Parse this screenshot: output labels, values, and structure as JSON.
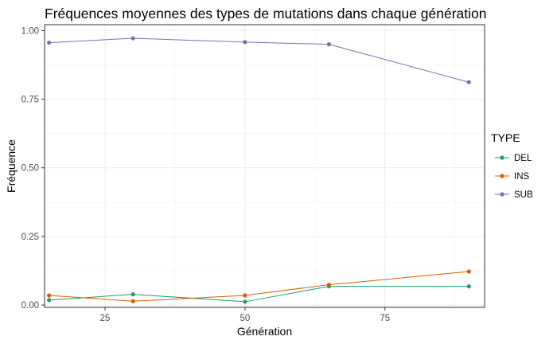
{
  "chart_data": {
    "type": "line",
    "title": "Fréquences moyennes des types de mutations dans chaque génération",
    "xlabel": "Génération",
    "ylabel": "Fréquence",
    "xlim": [
      14.2,
      92.8
    ],
    "ylim": [
      -0.0085,
      1.0215
    ],
    "x_ticks": [
      25,
      50,
      75
    ],
    "x_tick_labels": [
      "25",
      "50",
      "75"
    ],
    "y_ticks": [
      0,
      0.25,
      0.5,
      0.75,
      1.0
    ],
    "y_tick_labels": [
      "0.00",
      "0.25",
      "0.50",
      "0.75",
      "1.00"
    ],
    "grid": true,
    "legend_title": "TYPE",
    "legend_position": "right",
    "x": [
      15,
      30,
      50,
      65,
      90
    ],
    "series": [
      {
        "name": "DEL",
        "color": "#1b9e77",
        "values": [
          0.018,
          0.039,
          0.012,
          0.068,
          0.068
        ]
      },
      {
        "name": "INS",
        "color": "#d95f02",
        "values": [
          0.035,
          0.014,
          0.035,
          0.074,
          0.122
        ]
      },
      {
        "name": "SUB",
        "color": "#7570b3",
        "values": [
          0.956,
          0.972,
          0.958,
          0.95,
          0.812
        ]
      }
    ]
  }
}
